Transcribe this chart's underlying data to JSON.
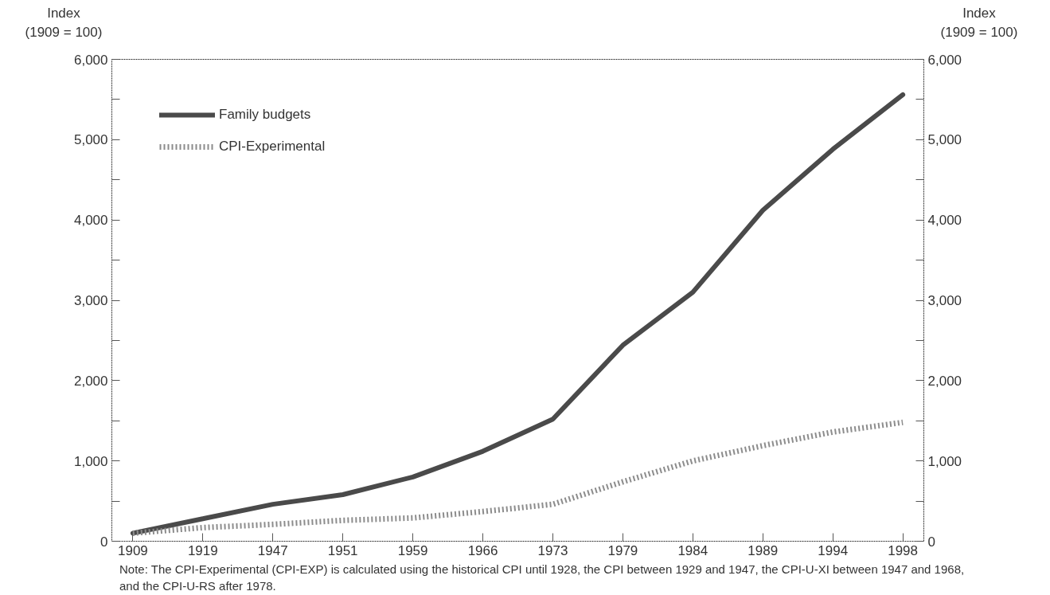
{
  "chart_data": {
    "type": "line",
    "categories": [
      "1909",
      "1919",
      "1947",
      "1951",
      "1959",
      "1966",
      "1973",
      "1979",
      "1984",
      "1989",
      "1994",
      "1998"
    ],
    "series": [
      {
        "name": "Family budgets",
        "color": "#4a4a4a",
        "line_style": "solid",
        "values": [
          100,
          280,
          460,
          580,
          800,
          1120,
          1520,
          2440,
          3100,
          4120,
          4880,
          5560
        ]
      },
      {
        "name": "CPI-Experimental",
        "color": "#8c8c8c",
        "line_style": "dotted",
        "values": [
          100,
          170,
          210,
          260,
          290,
          370,
          460,
          740,
          1000,
          1190,
          1360,
          1480
        ]
      }
    ],
    "ylabel": "Index\n(1909 = 100)",
    "y2label": "Index\n(1909 = 100)",
    "ylim": [
      0,
      6000
    ],
    "y2lim": [
      0,
      6000
    ],
    "yticks": [
      0,
      {
        "value": 500,
        "label": null
      },
      {
        "value": 1000,
        "label": "1,000"
      },
      {
        "value": 1500,
        "label": null
      },
      {
        "value": 2000,
        "label": "2,000"
      },
      {
        "value": 2500,
        "label": null
      },
      {
        "value": 3000,
        "label": "3,000"
      },
      {
        "value": 3500,
        "label": null
      },
      {
        "value": 4000,
        "label": "4,000"
      },
      {
        "value": 4500,
        "label": null
      },
      {
        "value": 5000,
        "label": "5,000"
      },
      {
        "value": 5500,
        "label": null
      },
      {
        "value": 6000,
        "label": "6,000"
      }
    ],
    "y2ticks": [
      0,
      {
        "value": 500,
        "label": null
      },
      {
        "value": 1000,
        "label": "1,000"
      },
      {
        "value": 1500,
        "label": null
      },
      {
        "value": 2000,
        "label": "2,000"
      },
      {
        "value": 2500,
        "label": null
      },
      {
        "value": 3000,
        "label": "3,000"
      },
      {
        "value": 3500,
        "label": null
      },
      {
        "value": 4000,
        "label": "4,000"
      },
      {
        "value": 4500,
        "label": null
      },
      {
        "value": 5000,
        "label": "5,000"
      },
      {
        "value": 5500,
        "label": null
      },
      {
        "value": 6000,
        "label": "6,000"
      }
    ],
    "grid": false,
    "legend": "top left",
    "marker": "none",
    "annotations": [
      "Note: The CPI-Experimental (CPI-EXP) is calculated using the historical CPI until 1928, the CPI between 1929 and 1947, the CPI-U-XI between 1947 and 1968, and the CPI-U-RS after 1978."
    ]
  }
}
